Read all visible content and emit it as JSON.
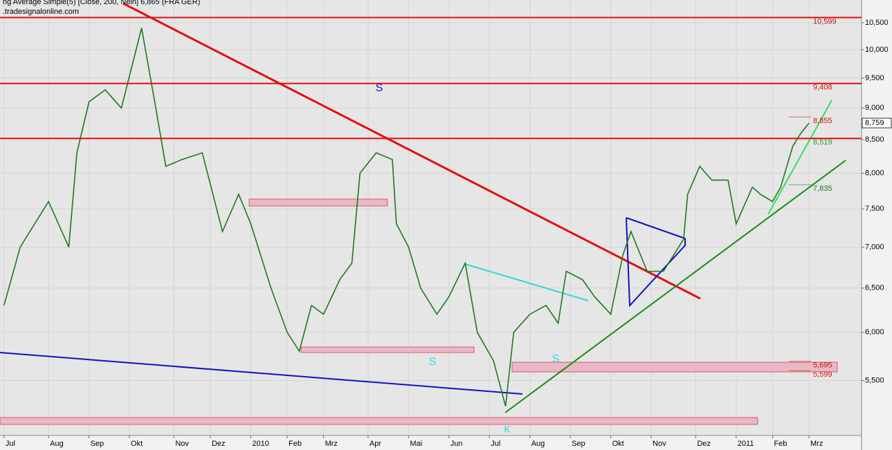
{
  "chart_data": {
    "type": "line",
    "title": "ng Average Simple(5) [Close, 200, Nein] 6,865 (FRA GER)",
    "subtitle": ".tradesignalonline.com",
    "log_scale": true,
    "grid": true,
    "x": [
      0,
      0.4,
      1.1,
      1.6,
      1.8,
      2.1,
      2.5,
      2.9,
      3.4,
      3.7,
      4.0,
      4.4,
      4.9,
      5.4,
      5.8,
      6.1,
      6.6,
      7.0,
      7.3,
      7.6,
      7.9,
      8.3,
      8.6,
      8.8,
      9.2,
      9.6,
      9.7,
      10.0,
      10.3,
      10.7,
      11.0,
      11.4,
      11.7,
      12.1,
      12.4,
      12.6,
      13.0,
      13.4,
      13.7,
      13.9,
      14.3,
      14.6,
      15.0,
      15.3,
      15.5,
      15.9,
      16.3,
      16.8,
      16.9,
      17.2,
      17.5,
      17.9,
      18.1,
      18.5,
      18.7,
      19.0,
      19.2,
      19.5,
      19.7,
      19.9
    ],
    "series": [
      {
        "color": "#1a7a1a",
        "values": [
          6300,
          7000,
          7600,
          7000,
          8300,
          9100,
          9300,
          9000,
          10400,
          9200,
          8100,
          8200,
          8300,
          7200,
          7700,
          7300,
          6500,
          6000,
          5800,
          6300,
          6200,
          6600,
          6800,
          8000,
          8300,
          8200,
          7300,
          7000,
          6500,
          6200,
          6400,
          6800,
          6000,
          5700,
          5250,
          6000,
          6200,
          6300,
          6100,
          6700,
          6600,
          6400,
          6200,
          6900,
          7200,
          6700,
          6700,
          7100,
          7700,
          8100,
          7900,
          7900,
          7300,
          7800,
          7700,
          7600,
          7800,
          8400,
          8600,
          8759
        ]
      }
    ],
    "xlim": [
      -0.1,
      21.2
    ],
    "xticks": [
      {
        "value": 0,
        "label": "Jul"
      },
      {
        "value": 1.1,
        "label": "Aug"
      },
      {
        "value": 2.1,
        "label": "Sep"
      },
      {
        "value": 3.1,
        "label": "Okt"
      },
      {
        "value": 4.2,
        "label": "Nov"
      },
      {
        "value": 5.1,
        "label": "Dez"
      },
      {
        "value": 6.1,
        "label": "2010"
      },
      {
        "value": 7.0,
        "label": "Feb"
      },
      {
        "value": 7.9,
        "label": "Mrz"
      },
      {
        "value": 9.0,
        "label": "Apr"
      },
      {
        "value": 10.0,
        "label": "Mai"
      },
      {
        "value": 11.0,
        "label": "Jun"
      },
      {
        "value": 12.0,
        "label": "Jul"
      },
      {
        "value": 13.0,
        "label": "Aug"
      },
      {
        "value": 14.0,
        "label": "Sep"
      },
      {
        "value": 15.0,
        "label": "Okt"
      },
      {
        "value": 16.0,
        "label": "Nov"
      },
      {
        "value": 17.1,
        "label": "Dez"
      },
      {
        "value": 18.1,
        "label": "2011"
      },
      {
        "value": 19.0,
        "label": "Feb"
      },
      {
        "value": 19.9,
        "label": "Mrz"
      }
    ],
    "ylim": [
      4980,
      10940
    ],
    "yticks": [
      {
        "value": 5500,
        "label": "5,500"
      },
      {
        "value": 6000,
        "label": "6,000"
      },
      {
        "value": 6500,
        "label": "6,500"
      },
      {
        "value": 7000,
        "label": "7,000"
      },
      {
        "value": 7500,
        "label": "7,500"
      },
      {
        "value": 8000,
        "label": "8,000"
      },
      {
        "value": 8500,
        "label": "8,500"
      },
      {
        "value": 9000,
        "label": "9,000"
      },
      {
        "value": 9500,
        "label": "9,500"
      },
      {
        "value": 10000,
        "label": "10,000"
      },
      {
        "value": 10500,
        "label": "10,500"
      }
    ],
    "levels": [
      {
        "value": 10599,
        "label": "10,599",
        "color": "#d01010",
        "line": true
      },
      {
        "value": 9408,
        "label": "9,408",
        "color": "#d01010",
        "line": true
      },
      {
        "value": 8855,
        "label": "8,855",
        "color": "#d01010",
        "line": false
      },
      {
        "value": 8519,
        "label": "8,519",
        "color": "#20a020",
        "line": true
      },
      {
        "value": 7835,
        "label": "7,835",
        "color": "#1a7a1a",
        "line": false
      },
      {
        "value": 5695,
        "label": "5,695",
        "color": "#d01010",
        "line": false
      },
      {
        "value": 5599,
        "label": "5,599",
        "color": "#d01010",
        "line": false
      }
    ],
    "last_price": {
      "value": 8759,
      "label": "8,759"
    },
    "annotations": [
      "S",
      "S",
      "S",
      "K"
    ]
  }
}
